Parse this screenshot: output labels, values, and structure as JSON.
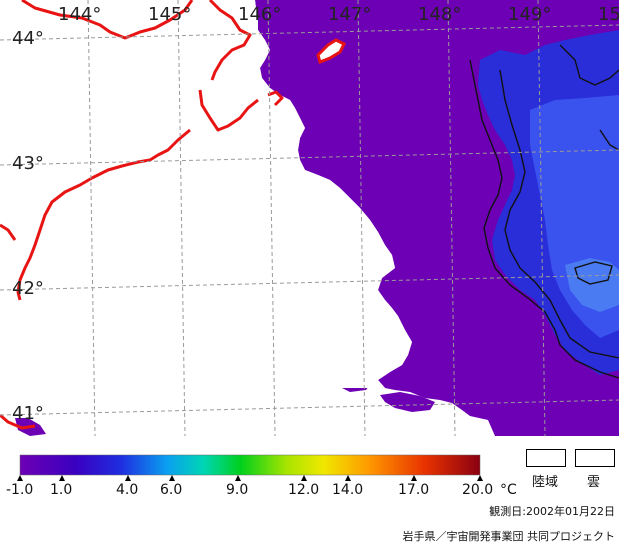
{
  "map": {
    "lon_labels": [
      "144°",
      "145°",
      "146°",
      "147°",
      "148°",
      "149°",
      "15"
    ],
    "lat_labels": [
      "44°",
      "43°",
      "42°",
      "41°"
    ]
  },
  "legend": {
    "ticks": [
      "-1.0",
      "1.0",
      "4.0",
      "6.0",
      "9.0",
      "12.0",
      "14.0",
      "17.0",
      "20.0"
    ],
    "unit": "°C",
    "land_label": "陸域",
    "cloud_label": "雲"
  },
  "footer": {
    "observation_date": "観測日:2002年01月22日",
    "credit": "岩手県／宇宙開発事業団 共同プロジェクト"
  },
  "colors": {
    "sea_purple": "#6d00b4",
    "coast_red": "#e81414",
    "land_white": "#ffffff",
    "warm_blue": "#2a2ed8"
  }
}
